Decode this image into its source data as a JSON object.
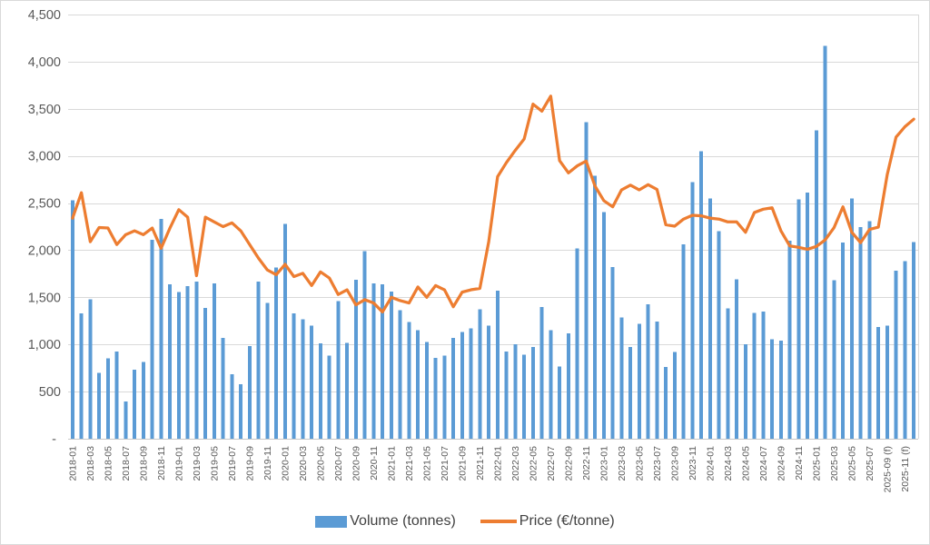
{
  "chart_data": {
    "type": "bar+line combo",
    "title": "",
    "x_months": [
      "2018-01",
      "2018-02",
      "2018-03",
      "2018-04",
      "2018-05",
      "2018-06",
      "2018-07",
      "2018-08",
      "2018-09",
      "2018-10",
      "2018-11",
      "2018-12",
      "2019-01",
      "2019-02",
      "2019-03",
      "2019-04",
      "2019-05",
      "2019-06",
      "2019-07",
      "2019-08",
      "2019-09",
      "2019-10",
      "2019-11",
      "2019-12",
      "2020-01",
      "2020-02",
      "2020-03",
      "2020-04",
      "2020-05",
      "2020-06",
      "2020-07",
      "2020-08",
      "2020-09",
      "2020-10",
      "2020-11",
      "2020-12",
      "2021-01",
      "2021-02",
      "2021-03",
      "2021-04",
      "2021-05",
      "2021-06",
      "2021-07",
      "2021-08",
      "2021-09",
      "2021-10",
      "2021-11",
      "2021-12",
      "2022-01",
      "2022-02",
      "2022-03",
      "2022-04",
      "2022-05",
      "2022-06",
      "2022-07",
      "2022-08",
      "2022-09",
      "2022-10",
      "2022-11",
      "2022-12",
      "2023-01",
      "2023-02",
      "2023-03",
      "2023-04",
      "2023-05",
      "2023-06",
      "2023-07",
      "2023-08",
      "2023-09",
      "2023-10",
      "2023-11",
      "2023-12",
      "2024-01",
      "2024-02",
      "2024-03",
      "2024-04",
      "2024-05",
      "2024-06",
      "2024-07",
      "2024-08",
      "2024-09",
      "2024-10",
      "2024-11",
      "2024-12",
      "2025-01",
      "2025-02",
      "2025-03",
      "2025-04",
      "2025-05",
      "2025-06",
      "2025-07",
      "2025-08",
      "2025-09",
      "2025-10",
      "2025-11",
      "2025-12"
    ],
    "x_tick_labels": [
      "2018-01",
      "2018-03",
      "2018-05",
      "2018-07",
      "2018-09",
      "2018-11",
      "2019-01",
      "2019-03",
      "2019-05",
      "2019-07",
      "2019-09",
      "2019-11",
      "2020-01",
      "2020-03",
      "2020-05",
      "2020-07",
      "2020-09",
      "2020-11",
      "2021-01",
      "2021-03",
      "2021-05",
      "2021-07",
      "2021-09",
      "2021-11",
      "2022-01",
      "2022-03",
      "2022-05",
      "2022-07",
      "2022-09",
      "2022-11",
      "2023-01",
      "2023-03",
      "2023-05",
      "2023-07",
      "2023-09",
      "2023-11",
      "2024-01",
      "2024-03",
      "2024-05",
      "2024-07",
      "2024-09",
      "2024-11",
      "2025-01",
      "2025-03",
      "2025-05",
      "2025-07",
      "2025-09 (f)",
      "2025-11 (f)"
    ],
    "series": [
      {
        "name": "Volume (tonnes)",
        "type": "bar",
        "color": "#5B9BD5",
        "values": [
          2530,
          1330,
          1480,
          700,
          855,
          925,
          395,
          730,
          815,
          2110,
          2330,
          1640,
          1555,
          1620,
          1665,
          1390,
          1650,
          1070,
          685,
          580,
          985,
          1665,
          1440,
          1815,
          2280,
          1330,
          1265,
          1200,
          1010,
          880,
          1460,
          1015,
          1685,
          1990,
          1650,
          1640,
          1560,
          1365,
          1240,
          1150,
          1025,
          860,
          880,
          1070,
          1130,
          1170,
          1375,
          1200,
          1570,
          925,
          1000,
          890,
          975,
          1395,
          1150,
          765,
          1120,
          2020,
          3360,
          2790,
          2405,
          1820,
          1285,
          975,
          1220,
          1425,
          1245,
          760,
          920,
          2060,
          2720,
          3050,
          2550,
          2200,
          1385,
          1690,
          1000,
          1335,
          1350,
          1055,
          1040,
          2100,
          2540,
          2610,
          3270,
          4170,
          1680,
          2080,
          2550,
          2245,
          2310,
          1185,
          1200,
          1785,
          1885,
          2085
        ]
      },
      {
        "name": "Price (€/tonne)",
        "type": "line",
        "color": "#ED7D31",
        "values": [
          2340,
          2610,
          2090,
          2240,
          2235,
          2060,
          2165,
          2205,
          2165,
          2235,
          2020,
          2235,
          2430,
          2350,
          1730,
          2350,
          2300,
          2250,
          2290,
          2205,
          2060,
          1915,
          1790,
          1740,
          1850,
          1720,
          1755,
          1625,
          1770,
          1705,
          1530,
          1580,
          1420,
          1475,
          1440,
          1345,
          1500,
          1465,
          1440,
          1610,
          1500,
          1625,
          1580,
          1400,
          1555,
          1580,
          1595,
          2090,
          2780,
          2930,
          3060,
          3180,
          3550,
          3475,
          3635,
          2950,
          2820,
          2895,
          2945,
          2680,
          2525,
          2460,
          2640,
          2690,
          2640,
          2695,
          2645,
          2270,
          2255,
          2330,
          2370,
          2365,
          2340,
          2330,
          2300,
          2300,
          2190,
          2400,
          2435,
          2450,
          2205,
          2045,
          2030,
          2010,
          2040,
          2110,
          2240,
          2460,
          2190,
          2080,
          2220,
          2245,
          2800,
          3200,
          3310,
          3390
        ]
      }
    ],
    "y_axis": {
      "min": 0,
      "max": 4500,
      "tick_interval": 500,
      "tick_labels": [
        "-",
        "500",
        "1,000",
        "1,500",
        "2,000",
        "2,500",
        "3,000",
        "3,500",
        "4,000",
        "4,500"
      ]
    },
    "grid": true,
    "legend_position": "bottom",
    "forecast_suffix": "(f)"
  },
  "colors": {
    "gridline": "#D9D9D9",
    "axis_line": "#C9C9C9",
    "plot_border": "#D9D9D9",
    "tick_text": "#595959",
    "legend_text": "#404040",
    "background": "#FFFFFF"
  }
}
